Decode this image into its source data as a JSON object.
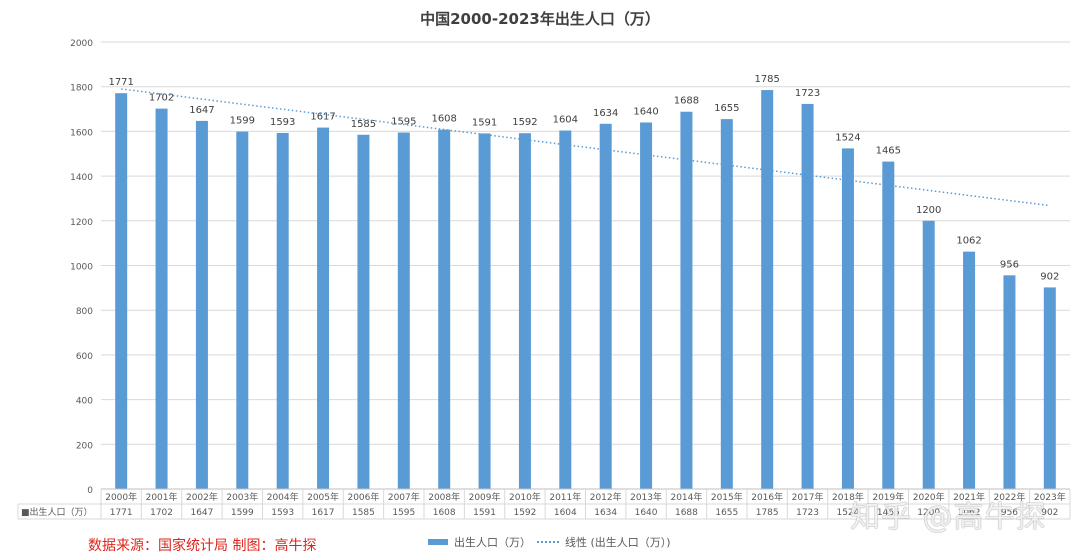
{
  "title": "中国2000-2023年出生人口（万）",
  "footer": {
    "source": "数据来源：国家统计局  制图：高牛探",
    "watermark": "知乎 @高牛探"
  },
  "legend": {
    "series_label": "出生人口（万）",
    "trend_label": "线性 (出生人口（万）)"
  },
  "table": {
    "row_header": "■出生人口（万）"
  },
  "colors": {
    "bar": "#5b9bd5",
    "trend": "#5b9bd5",
    "grid": "#d9d9d9",
    "axis_text": "#595959",
    "source_text": "#e0241b"
  },
  "chart_data": {
    "type": "bar",
    "title": "中国2000-2023年出生人口（万）",
    "xlabel": "",
    "ylabel": "",
    "ylim": [
      0,
      2000
    ],
    "yticks": [
      0,
      200,
      400,
      600,
      800,
      1000,
      1200,
      1400,
      1600,
      1800,
      2000
    ],
    "grid": true,
    "legend_position": "bottom",
    "categories": [
      "2000年",
      "2001年",
      "2002年",
      "2003年",
      "2004年",
      "2005年",
      "2006年",
      "2007年",
      "2008年",
      "2009年",
      "2010年",
      "2011年",
      "2012年",
      "2013年",
      "2014年",
      "2015年",
      "2016年",
      "2017年",
      "2018年",
      "2019年",
      "2020年",
      "2021年",
      "2022年",
      "2023年"
    ],
    "series": [
      {
        "name": "出生人口（万）",
        "values": [
          1771,
          1702,
          1647,
          1599,
          1593,
          1617,
          1585,
          1595,
          1608,
          1591,
          1592,
          1604,
          1634,
          1640,
          1688,
          1655,
          1785,
          1723,
          1524,
          1465,
          1200,
          1062,
          956,
          902
        ]
      }
    ],
    "trendline": {
      "name": "线性 (出生人口（万）)",
      "type": "linear",
      "start": 1790,
      "end": 1268
    },
    "data_table": true
  }
}
